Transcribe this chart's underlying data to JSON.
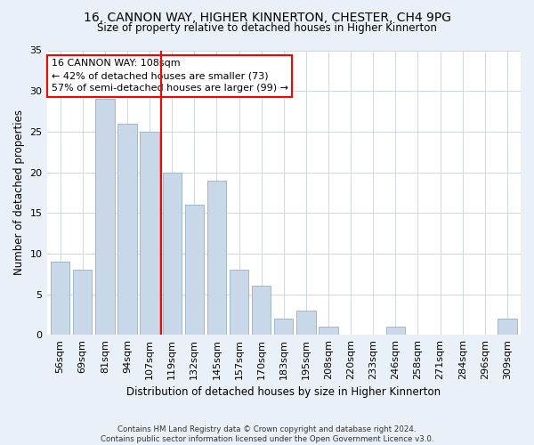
{
  "title": "16, CANNON WAY, HIGHER KINNERTON, CHESTER, CH4 9PG",
  "subtitle": "Size of property relative to detached houses in Higher Kinnerton",
  "xlabel": "Distribution of detached houses by size in Higher Kinnerton",
  "ylabel": "Number of detached properties",
  "bar_labels": [
    "56sqm",
    "69sqm",
    "81sqm",
    "94sqm",
    "107sqm",
    "119sqm",
    "132sqm",
    "145sqm",
    "157sqm",
    "170sqm",
    "183sqm",
    "195sqm",
    "208sqm",
    "220sqm",
    "233sqm",
    "246sqm",
    "258sqm",
    "271sqm",
    "284sqm",
    "296sqm",
    "309sqm"
  ],
  "bar_values": [
    9,
    8,
    29,
    26,
    25,
    20,
    16,
    19,
    8,
    6,
    2,
    3,
    1,
    0,
    0,
    1,
    0,
    0,
    0,
    0,
    2
  ],
  "bar_color": "#c8d8e8",
  "bar_edge_color": "#a0b8cc",
  "vline_index": 4,
  "vline_color": "red",
  "annotation_text": "16 CANNON WAY: 108sqm\n← 42% of detached houses are smaller (73)\n57% of semi-detached houses are larger (99) →",
  "annotation_box_color": "white",
  "annotation_box_edge_color": "red",
  "ylim": [
    0,
    35
  ],
  "yticks": [
    0,
    5,
    10,
    15,
    20,
    25,
    30,
    35
  ],
  "footer": "Contains HM Land Registry data © Crown copyright and database right 2024.\nContains public sector information licensed under the Open Government Licence v3.0.",
  "bg_color": "#eaf0f8",
  "plot_bg_color": "#ffffff",
  "grid_color": "#d0d8e0"
}
